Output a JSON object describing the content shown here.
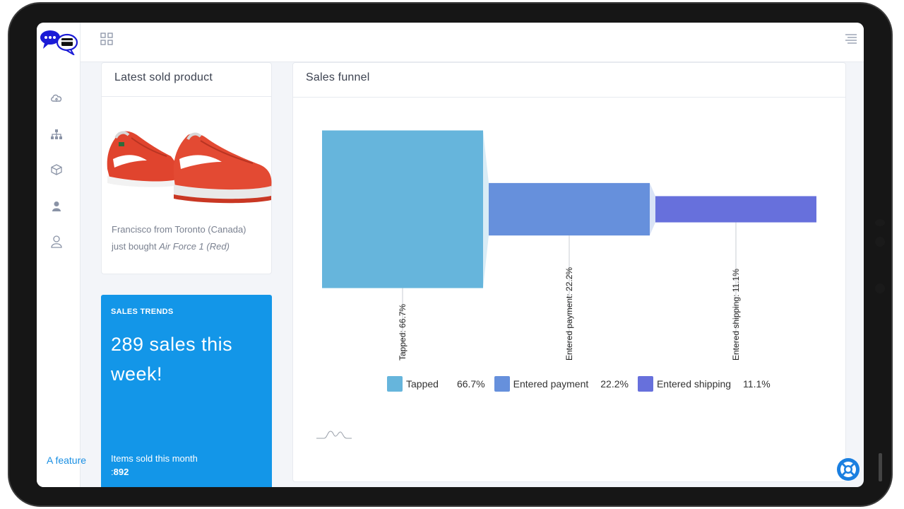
{
  "colors": {
    "accent": "#1396e8",
    "tapped": "#66b5dc",
    "entered_payment": "#6690dc",
    "entered_shipping": "#6770dc"
  },
  "sidebar": {
    "icons": [
      "cloud-icon",
      "sitemap-icon",
      "cube-icon",
      "user-icon",
      "user-outline-icon"
    ],
    "feature_link": "A feature"
  },
  "topbar": {
    "apps_icon": "grid-icon",
    "menu_icon": "menu-icon"
  },
  "latest_sold": {
    "title": "Latest sold product",
    "line1": "Francisco from Toronto (Canada)",
    "line2_prefix": "just bought ",
    "product": "Air Force 1 (Red)"
  },
  "sales_trends": {
    "label": "SALES TRENDS",
    "headline": "289 sales this week!",
    "items_prefix": "Items sold this month :",
    "items_value": "892"
  },
  "funnel": {
    "title": "Sales funnel"
  },
  "chart_data": {
    "type": "bar",
    "subtype": "funnel",
    "categories": [
      "Tapped",
      "Entered payment",
      "Entered shipping"
    ],
    "values": [
      66.7,
      22.2,
      11.1
    ],
    "unit": "%",
    "data_labels": [
      "Tapped: 66.7%",
      "Entered payment: 22.2%",
      "Entered shipping: 11.1%"
    ],
    "legend": {
      "placement": "bottom",
      "entries": [
        {
          "name": "Tapped",
          "value": "66.7%",
          "color": "#66b5dc"
        },
        {
          "name": "Entered payment",
          "value": "22.2%",
          "color": "#6690dc"
        },
        {
          "name": "Entered shipping",
          "value": "11.1%",
          "color": "#6770dc"
        }
      ]
    },
    "title": "Sales funnel"
  }
}
